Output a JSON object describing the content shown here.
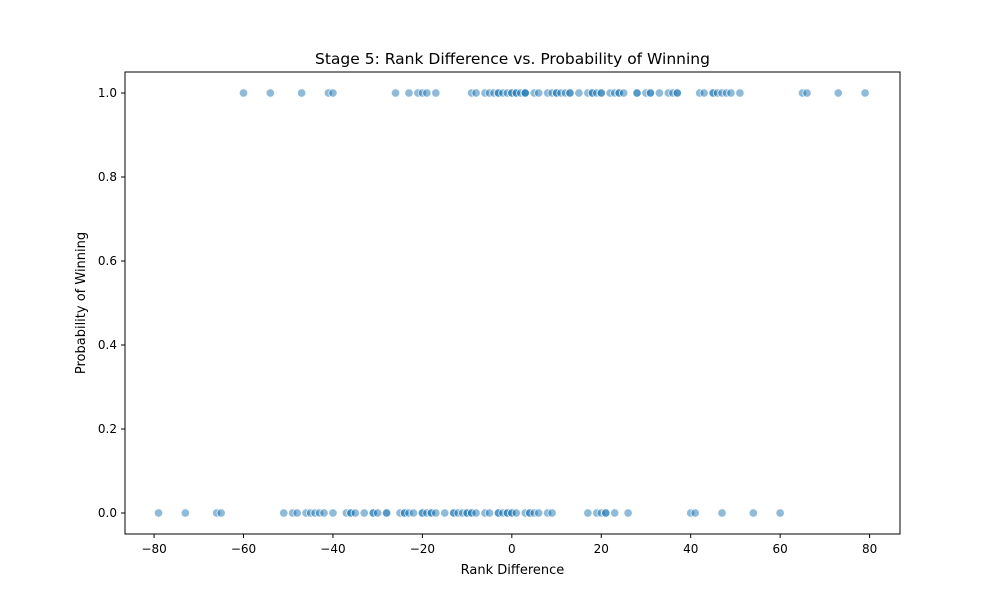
{
  "chart_data": {
    "type": "scatter",
    "title": "Stage 5: Rank Difference vs. Probability of Winning",
    "xlabel": "Rank Difference",
    "ylabel": "Probability of Winning",
    "xlim": [
      -86.5,
      86.8
    ],
    "ylim": [
      -0.05,
      1.05
    ],
    "x_ticks": [
      -80,
      -60,
      -40,
      -20,
      0,
      20,
      40,
      60,
      80
    ],
    "x_tick_labels": [
      "−80",
      "−60",
      "−40",
      "−20",
      "0",
      "20",
      "40",
      "60",
      "80"
    ],
    "y_ticks": [
      0,
      0.2,
      0.4,
      0.6,
      0.8,
      1.0
    ],
    "y_tick_labels": [
      "0.0",
      "0.2",
      "0.4",
      "0.6",
      "0.8",
      "1.0"
    ],
    "grid": false,
    "legend": "none",
    "marker_color": "#1f77b4",
    "marker_alpha": 0.5,
    "points": [
      [
        -60,
        1
      ],
      [
        -54,
        1
      ],
      [
        -47,
        1
      ],
      [
        -41,
        1
      ],
      [
        -40,
        1
      ],
      [
        -26,
        1
      ],
      [
        -23,
        1
      ],
      [
        -21,
        1
      ],
      [
        -20,
        1
      ],
      [
        -19,
        1
      ],
      [
        -17,
        1
      ],
      [
        -9,
        1
      ],
      [
        -8,
        1
      ],
      [
        -6,
        1
      ],
      [
        -5,
        1
      ],
      [
        -4,
        1
      ],
      [
        -3,
        1
      ],
      [
        -3,
        1
      ],
      [
        -2,
        1
      ],
      [
        -1,
        1
      ],
      [
        0,
        1
      ],
      [
        0,
        1
      ],
      [
        1,
        1
      ],
      [
        1,
        1
      ],
      [
        2,
        1
      ],
      [
        3,
        1
      ],
      [
        3,
        1
      ],
      [
        3,
        1
      ],
      [
        5,
        1
      ],
      [
        6,
        1
      ],
      [
        8,
        1
      ],
      [
        9,
        1
      ],
      [
        10,
        1
      ],
      [
        10,
        1
      ],
      [
        11,
        1
      ],
      [
        12,
        1
      ],
      [
        13,
        1
      ],
      [
        13,
        1
      ],
      [
        15,
        1
      ],
      [
        17,
        1
      ],
      [
        18,
        1
      ],
      [
        18,
        1
      ],
      [
        19,
        1
      ],
      [
        20,
        1
      ],
      [
        20,
        1
      ],
      [
        22,
        1
      ],
      [
        23,
        1
      ],
      [
        24,
        1
      ],
      [
        24,
        1
      ],
      [
        25,
        1
      ],
      [
        28,
        1
      ],
      [
        28,
        1
      ],
      [
        30,
        1
      ],
      [
        31,
        1
      ],
      [
        31,
        1
      ],
      [
        33,
        1
      ],
      [
        35,
        1
      ],
      [
        36,
        1
      ],
      [
        37,
        1
      ],
      [
        37,
        1
      ],
      [
        42,
        1
      ],
      [
        43,
        1
      ],
      [
        45,
        1
      ],
      [
        45,
        1
      ],
      [
        46,
        1
      ],
      [
        47,
        1
      ],
      [
        48,
        1
      ],
      [
        49,
        1
      ],
      [
        51,
        1
      ],
      [
        65,
        1
      ],
      [
        66,
        1
      ],
      [
        73,
        1
      ],
      [
        79,
        1
      ],
      [
        -79,
        0
      ],
      [
        -73,
        0
      ],
      [
        -66,
        0
      ],
      [
        -65,
        0
      ],
      [
        -51,
        0
      ],
      [
        -49,
        0
      ],
      [
        -48,
        0
      ],
      [
        -46,
        0
      ],
      [
        -45,
        0
      ],
      [
        -44,
        0
      ],
      [
        -43,
        0
      ],
      [
        -42,
        0
      ],
      [
        -40,
        0
      ],
      [
        -37,
        0
      ],
      [
        -36,
        0
      ],
      [
        -36,
        0
      ],
      [
        -35,
        0
      ],
      [
        -33,
        0
      ],
      [
        -31,
        0
      ],
      [
        -31,
        0
      ],
      [
        -30,
        0
      ],
      [
        -28,
        0
      ],
      [
        -28,
        0
      ],
      [
        -25,
        0
      ],
      [
        -24,
        0
      ],
      [
        -24,
        0
      ],
      [
        -23,
        0
      ],
      [
        -22,
        0
      ],
      [
        -20,
        0
      ],
      [
        -20,
        0
      ],
      [
        -19,
        0
      ],
      [
        -18,
        0
      ],
      [
        -18,
        0
      ],
      [
        -17,
        0
      ],
      [
        -15,
        0
      ],
      [
        -13,
        0
      ],
      [
        -13,
        0
      ],
      [
        -12,
        0
      ],
      [
        -11,
        0
      ],
      [
        -10,
        0
      ],
      [
        -10,
        0
      ],
      [
        -9,
        0
      ],
      [
        -9,
        0
      ],
      [
        -8,
        0
      ],
      [
        -6,
        0
      ],
      [
        -5,
        0
      ],
      [
        -3,
        0
      ],
      [
        -3,
        0
      ],
      [
        -2,
        0
      ],
      [
        -1,
        0
      ],
      [
        -1,
        0
      ],
      [
        0,
        0
      ],
      [
        0,
        0
      ],
      [
        1,
        0
      ],
      [
        3,
        0
      ],
      [
        4,
        0
      ],
      [
        4,
        0
      ],
      [
        5,
        0
      ],
      [
        6,
        0
      ],
      [
        8,
        0
      ],
      [
        9,
        0
      ],
      [
        17,
        0
      ],
      [
        19,
        0
      ],
      [
        20,
        0
      ],
      [
        21,
        0
      ],
      [
        21,
        0
      ],
      [
        23,
        0
      ],
      [
        26,
        0
      ],
      [
        40,
        0
      ],
      [
        41,
        0
      ],
      [
        47,
        0
      ],
      [
        54,
        0
      ],
      [
        60,
        0
      ]
    ]
  }
}
